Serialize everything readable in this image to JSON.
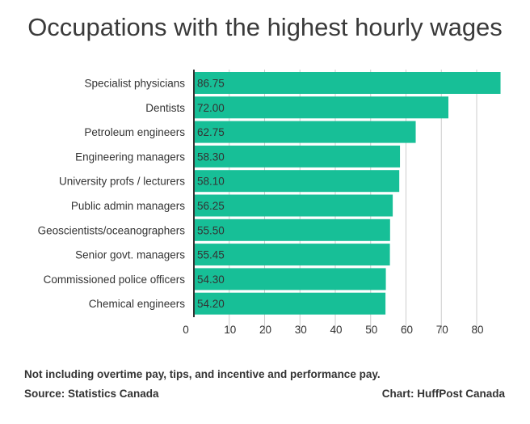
{
  "chart_data": {
    "type": "bar",
    "orientation": "horizontal",
    "title": "Occupations with the highest hourly wages",
    "categories": [
      "Specialist physicians",
      "Dentists",
      "Petroleum engineers",
      "Engineering managers",
      "University profs / lecturers",
      "Public admin managers",
      "Geoscientists/oceanographers",
      "Senior govt. managers",
      "Commissioned police officers",
      "Chemical engineers"
    ],
    "values": [
      86.75,
      72.0,
      62.75,
      58.3,
      58.1,
      56.25,
      55.5,
      55.45,
      54.3,
      54.2
    ],
    "value_labels": [
      "86.75",
      "72.00",
      "62.75",
      "58.30",
      "58.10",
      "56.25",
      "55.50",
      "55.45",
      "54.30",
      "54.20"
    ],
    "xlim": [
      0,
      88
    ],
    "x_ticks": [
      0,
      10,
      20,
      30,
      40,
      50,
      60,
      70,
      80
    ],
    "grid": "vertical",
    "bar_color": "#17bf97",
    "xlabel": "",
    "ylabel": ""
  },
  "notes": {
    "footnote": "Not including overtime pay, tips, and incentive and performance pay.",
    "source": "Source: Statistics Canada",
    "credit": "Chart: HuffPost Canada"
  }
}
